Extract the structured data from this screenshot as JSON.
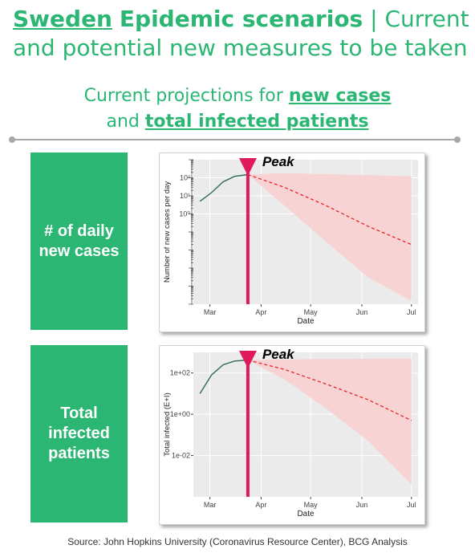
{
  "header": {
    "title_country": "Sweden",
    "title_rest": "Epidemic scenarios",
    "title_sep": " | Current p",
    "title_line2": "and potential new measures to be taken"
  },
  "subtitle": {
    "line1_prefix": "Current projections for ",
    "line1_link": "new cases",
    "line2_prefix": "and ",
    "line2_link": "total infected patients"
  },
  "rows": [
    {
      "label_line1": "# of daily",
      "label_line2": "new cases"
    },
    {
      "label_line1": "Total",
      "label_line2": "infected",
      "label_line3": "patients"
    }
  ],
  "source": "Source: John Hopkins University (Coronavirus Resource Center), BCG Analysis",
  "colors": {
    "brand_green": "#2bb673",
    "peak_marker": "#e0195b",
    "projection_fill": "#f7d3d3",
    "projection_line": "#e8232a",
    "observed_line": "#2f6b52"
  },
  "chart_data": [
    {
      "type": "line",
      "title": "",
      "annotation": "Peak",
      "xlabel": "Date",
      "ylabel": "Number of new cases per day",
      "x_ticks": [
        "Mar",
        "Apr",
        "May",
        "Jun",
        "Jul"
      ],
      "x_range": [
        "2020-02-20",
        "2020-07-05"
      ],
      "y_scale": "log",
      "ylim": [
        1e-05,
        1000
      ],
      "y_tick_values": [
        100,
        10,
        1
      ],
      "y_tick_labels": [
        "10²",
        "10¹",
        "10⁰"
      ],
      "peak_date": "2020-03-24",
      "series": [
        {
          "role": "observed",
          "x": [
            "2020-02-24",
            "2020-03-02",
            "2020-03-09",
            "2020-03-16",
            "2020-03-24"
          ],
          "y": [
            5,
            15,
            60,
            120,
            150
          ]
        },
        {
          "role": "projection",
          "x": [
            "2020-03-24",
            "2020-04-15",
            "2020-05-10",
            "2020-06-05",
            "2020-07-01"
          ],
          "y": [
            150,
            30,
            3,
            0.2,
            0.02
          ]
        },
        {
          "role": "upper",
          "x": [
            "2020-03-24",
            "2020-04-15",
            "2020-05-10",
            "2020-06-05",
            "2020-07-01"
          ],
          "y": [
            150,
            180,
            160,
            140,
            120
          ]
        },
        {
          "role": "lower",
          "x": [
            "2020-03-24",
            "2020-04-15",
            "2020-05-10",
            "2020-06-05",
            "2020-07-01"
          ],
          "y": [
            150,
            3,
            0.03,
            0.0003,
            1.5e-05
          ]
        }
      ],
      "grid": true
    },
    {
      "type": "line",
      "title": "",
      "annotation": "Peak",
      "xlabel": "Date",
      "ylabel": "Total infected (E+I)",
      "x_ticks": [
        "Mar",
        "Apr",
        "May",
        "Jun",
        "Jul"
      ],
      "x_range": [
        "2020-02-20",
        "2020-07-05"
      ],
      "y_scale": "log",
      "ylim": [
        0.0001,
        1000
      ],
      "y_tick_values": [
        100,
        1,
        0.01
      ],
      "y_tick_labels": [
        "1e+02",
        "1e+00",
        "1e-02"
      ],
      "peak_date": "2020-03-24",
      "series": [
        {
          "role": "observed",
          "x": [
            "2020-02-24",
            "2020-03-02",
            "2020-03-09",
            "2020-03-16",
            "2020-03-24"
          ],
          "y": [
            10,
            80,
            250,
            380,
            420
          ]
        },
        {
          "role": "projection",
          "x": [
            "2020-03-24",
            "2020-04-15",
            "2020-05-10",
            "2020-06-05",
            "2020-07-01"
          ],
          "y": [
            420,
            150,
            30,
            5,
            0.5
          ]
        },
        {
          "role": "upper",
          "x": [
            "2020-03-24",
            "2020-04-15",
            "2020-05-10",
            "2020-06-05",
            "2020-07-01"
          ],
          "y": [
            420,
            450,
            480,
            490,
            500
          ]
        },
        {
          "role": "lower",
          "x": [
            "2020-03-24",
            "2020-04-15",
            "2020-05-10",
            "2020-06-05",
            "2020-07-01"
          ],
          "y": [
            420,
            50,
            2,
            0.05,
            0.0004
          ]
        }
      ],
      "grid": true
    }
  ]
}
